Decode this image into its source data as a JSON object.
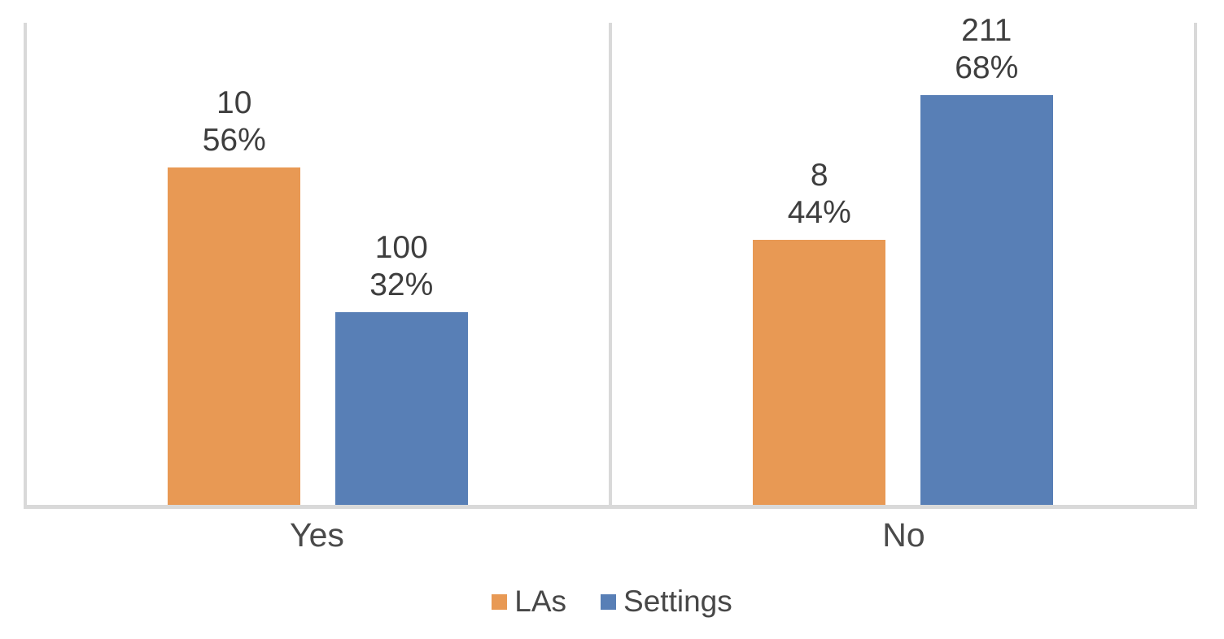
{
  "chart_data": {
    "type": "bar",
    "title": "",
    "xlabel": "",
    "ylabel": "",
    "categories": [
      "Yes",
      "No"
    ],
    "series": [
      {
        "name": "LAs",
        "color": "#E89954",
        "counts": [
          10,
          8
        ],
        "percents": [
          56,
          44
        ],
        "bar_labels": [
          [
            "10",
            "56%"
          ],
          [
            "8",
            "44%"
          ]
        ]
      },
      {
        "name": "Settings",
        "color": "#587FB6",
        "counts": [
          100,
          211
        ],
        "percents": [
          32,
          68
        ],
        "bar_labels": [
          [
            "100",
            "32%"
          ],
          [
            "211",
            "68%"
          ]
        ]
      }
    ],
    "ylim": [
      0,
      80
    ],
    "value_axis_visible": false,
    "grid": false,
    "legend_position": "bottom",
    "bar_value_unit": "percent",
    "panel_divider": true
  },
  "colors": {
    "axis_line": "#D9D9D9",
    "label_text": "#3E3E3E"
  }
}
